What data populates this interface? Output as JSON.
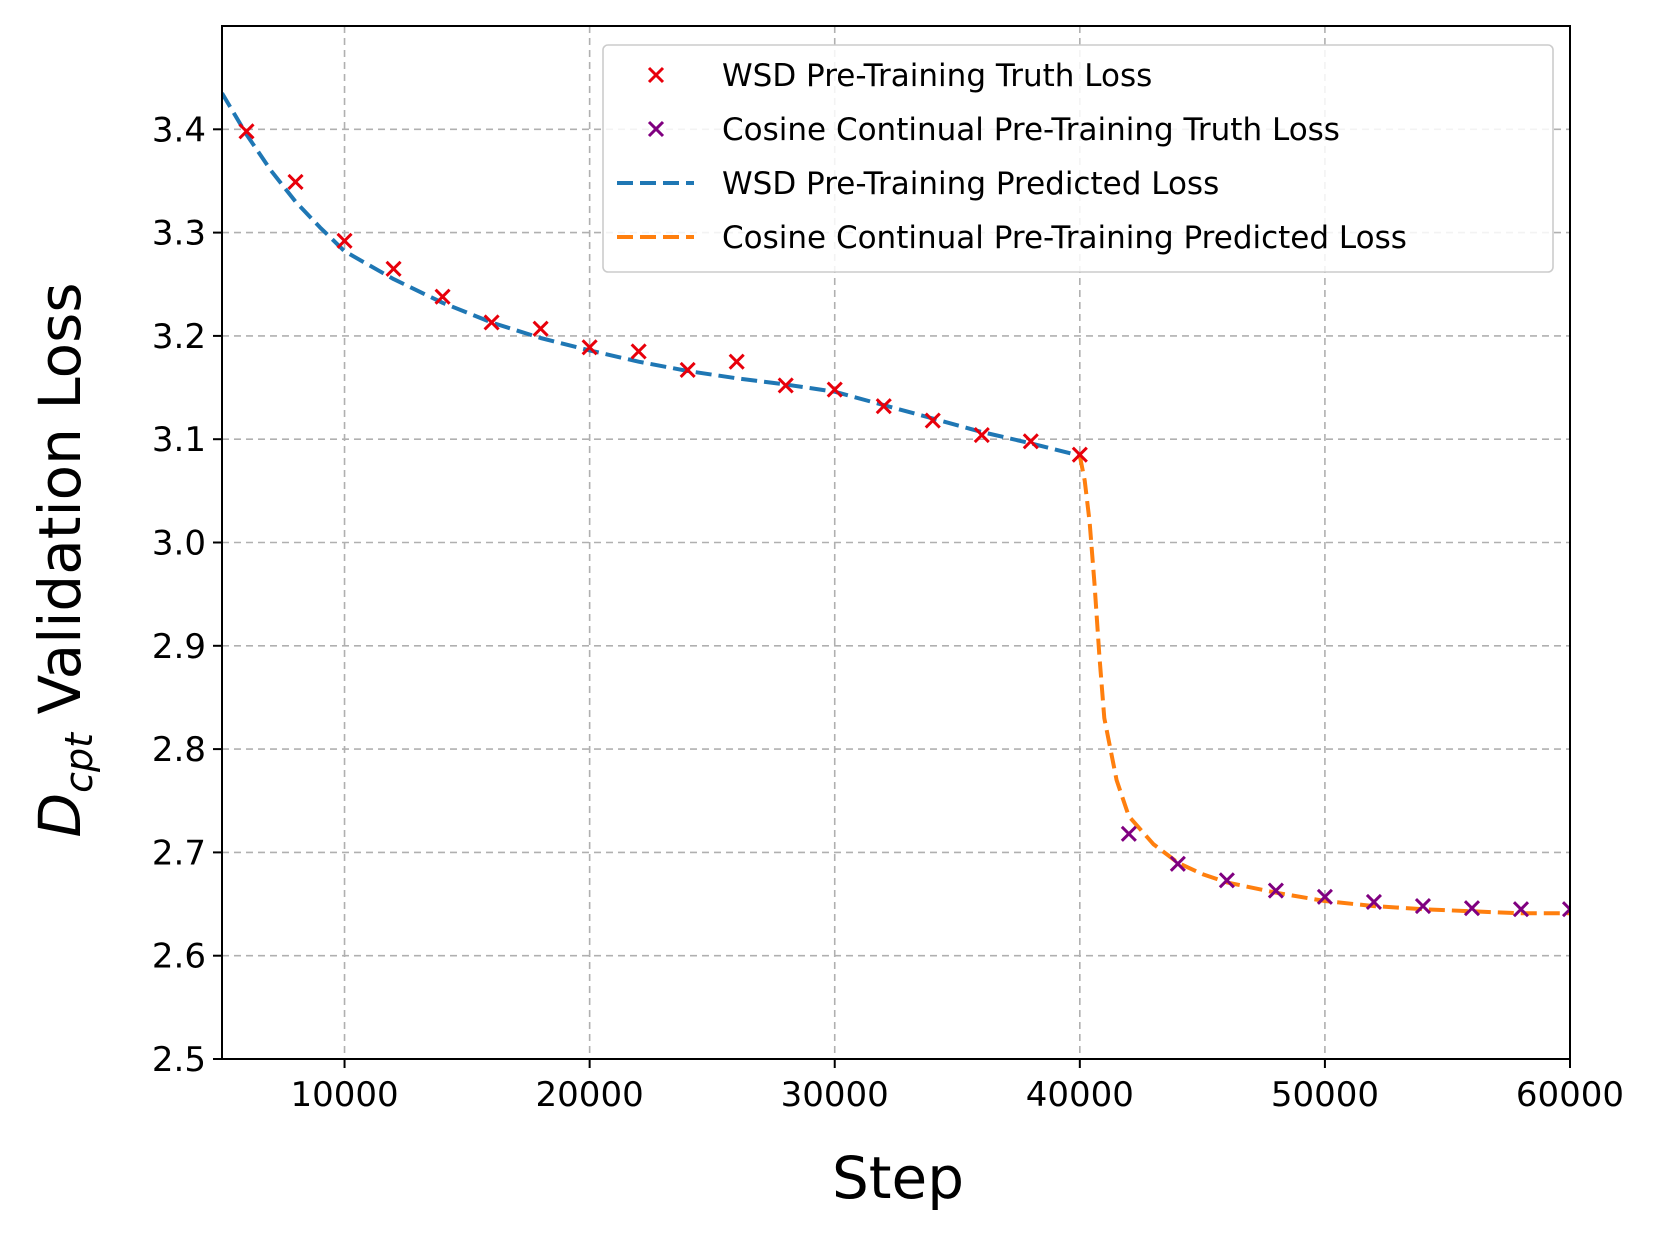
{
  "chart_data": {
    "type": "line",
    "title": "",
    "xlabel": "Step",
    "ylabel": {
      "base": "D",
      "subscript": "cpt",
      "rest": " Validation Loss"
    },
    "xlim": [
      5000,
      60000
    ],
    "ylim": [
      2.5,
      3.5
    ],
    "xticks": [
      10000,
      20000,
      30000,
      40000,
      50000,
      60000
    ],
    "yticks": [
      2.5,
      2.6,
      2.7,
      2.8,
      2.9,
      3.0,
      3.1,
      3.2,
      3.3,
      3.4
    ],
    "ytick_labels": [
      "2.5",
      "2.6",
      "2.7",
      "2.8",
      "2.9",
      "3.0",
      "3.1",
      "3.2",
      "3.3",
      "3.4"
    ],
    "grid": true,
    "legend_position": "top-right",
    "series": [
      {
        "name": "WSD Pre-Training Truth Loss",
        "kind": "scatter",
        "marker": "x",
        "color": "#e8000b",
        "x": [
          6000,
          8000,
          10000,
          12000,
          14000,
          16000,
          18000,
          20000,
          22000,
          24000,
          26000,
          28000,
          30000,
          32000,
          34000,
          36000,
          38000,
          40000
        ],
        "y": [
          3.398,
          3.349,
          3.292,
          3.265,
          3.238,
          3.213,
          3.207,
          3.189,
          3.185,
          3.167,
          3.175,
          3.152,
          3.148,
          3.132,
          3.118,
          3.104,
          3.098,
          3.085
        ]
      },
      {
        "name": "Cosine Continual Pre-Training Truth Loss",
        "kind": "scatter",
        "marker": "x",
        "color": "#800080",
        "x": [
          42000,
          44000,
          46000,
          48000,
          50000,
          52000,
          54000,
          56000,
          58000,
          60000
        ],
        "y": [
          2.718,
          2.689,
          2.673,
          2.663,
          2.657,
          2.652,
          2.648,
          2.646,
          2.645,
          2.645
        ]
      },
      {
        "name": "WSD Pre-Training Predicted Loss",
        "kind": "line",
        "style": "dashed",
        "color": "#1f77b4",
        "x": [
          5000,
          6000,
          7000,
          8000,
          9000,
          10000,
          12000,
          14000,
          16000,
          18000,
          20000,
          22000,
          24000,
          26000,
          28000,
          30000,
          32000,
          34000,
          36000,
          38000,
          40000
        ],
        "y": [
          3.435,
          3.395,
          3.36,
          3.33,
          3.305,
          3.282,
          3.255,
          3.232,
          3.213,
          3.198,
          3.186,
          3.175,
          3.166,
          3.159,
          3.153,
          3.146,
          3.133,
          3.12,
          3.107,
          3.096,
          3.084
        ]
      },
      {
        "name": "Cosine Continual Pre-Training Predicted Loss",
        "kind": "line",
        "style": "dashed",
        "color": "#ff7f0e",
        "x": [
          40000,
          40200,
          40400,
          40600,
          40800,
          41000,
          41500,
          42000,
          43000,
          44000,
          45000,
          46000,
          48000,
          50000,
          52000,
          54000,
          56000,
          58000,
          60000
        ],
        "y": [
          3.084,
          3.06,
          3.02,
          2.96,
          2.89,
          2.83,
          2.77,
          2.735,
          2.708,
          2.69,
          2.679,
          2.671,
          2.661,
          2.653,
          2.648,
          2.645,
          2.643,
          2.641,
          2.641
        ]
      }
    ]
  }
}
